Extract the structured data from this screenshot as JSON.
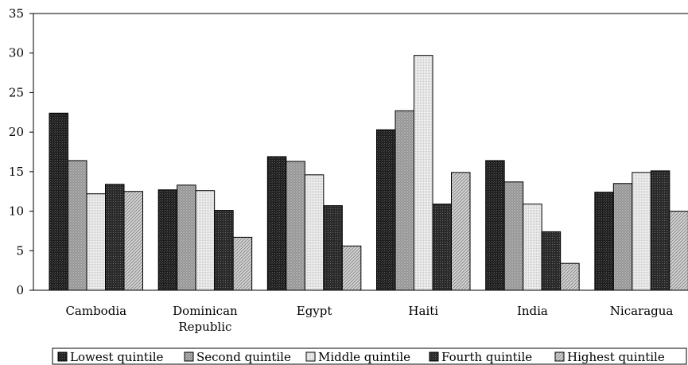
{
  "chart_data": {
    "type": "bar",
    "title": "",
    "xlabel": "",
    "ylabel": "",
    "ylim": [
      0,
      35
    ],
    "yticks": [
      0,
      5,
      10,
      15,
      20,
      25,
      30,
      35
    ],
    "categories": [
      [
        "Cambodia"
      ],
      [
        "Dominican",
        "Republic"
      ],
      [
        "Egypt"
      ],
      [
        "Haiti"
      ],
      [
        "India"
      ],
      [
        "Nicaragua"
      ]
    ],
    "series": [
      {
        "name": "Lowest quintile",
        "values": [
          22.4,
          12.7,
          16.9,
          20.3,
          16.4,
          12.4
        ],
        "fill": "pat-darkest"
      },
      {
        "name": "Second quintile",
        "values": [
          16.4,
          13.3,
          16.3,
          22.7,
          13.7,
          13.5
        ],
        "fill": "pat-mid"
      },
      {
        "name": "Middle quintile",
        "values": [
          12.2,
          12.6,
          14.6,
          29.7,
          10.9,
          14.9
        ],
        "fill": "pat-light"
      },
      {
        "name": "Fourth quintile",
        "values": [
          13.4,
          10.1,
          10.7,
          10.9,
          7.4,
          15.1
        ],
        "fill": "pat-dark"
      },
      {
        "name": "Highest quintile",
        "values": [
          12.5,
          6.7,
          5.6,
          14.9,
          3.4,
          10.0
        ],
        "fill": "pat-hatch"
      }
    ],
    "legend_position": "bottom",
    "grid": false
  }
}
